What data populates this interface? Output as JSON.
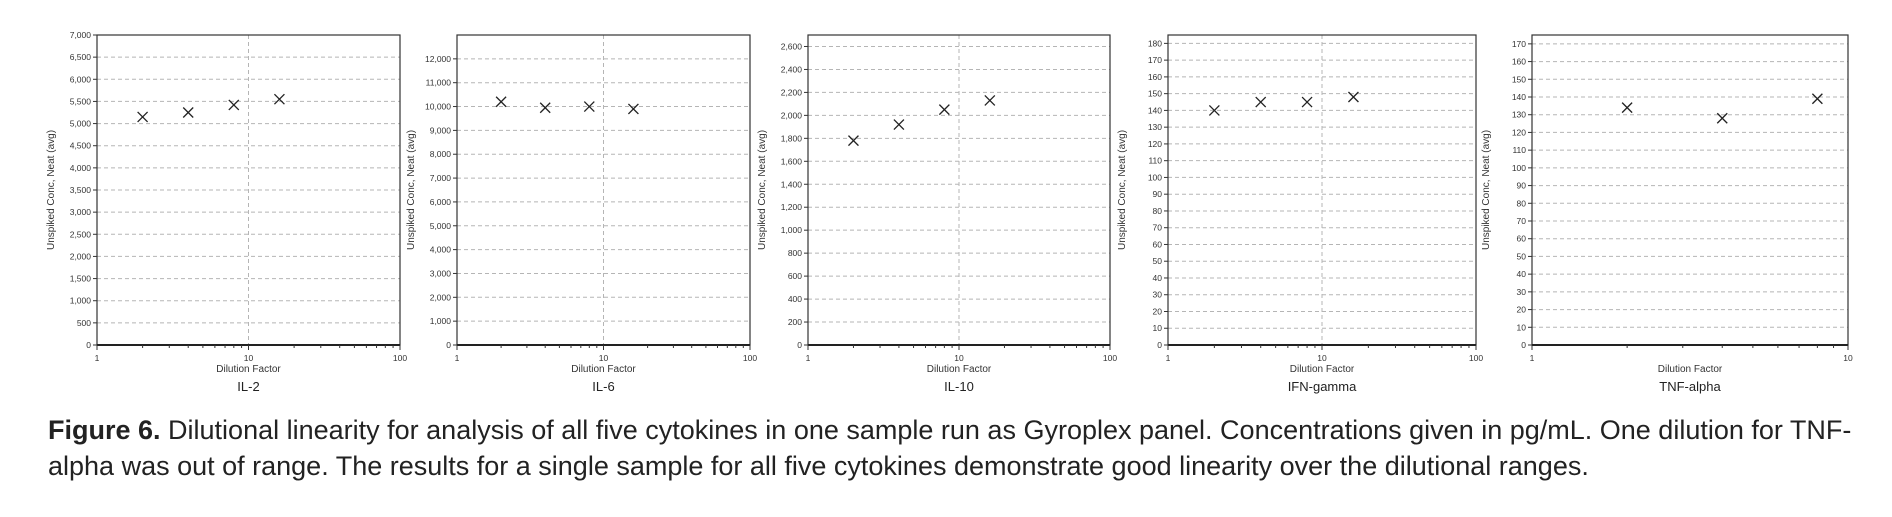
{
  "figure": {
    "caption_label": "Figure 6.",
    "caption_text": "Dilutional linearity for analysis of all five cytokines in one sample run as Gyroplex panel. Concentrations given in pg/mL. One dilution for TNF-alpha was out of range. The results for a single sample for all five cytokines demonstrate good linearity over the dilutional ranges."
  },
  "chart_data": [
    {
      "type": "scatter",
      "title": "IL-2",
      "xlabel": "Dilution Factor",
      "ylabel": "Unspiked Conc, Neat (avg)",
      "xscale": "log",
      "xlim": [
        1,
        100
      ],
      "xticks": [
        1,
        10,
        100
      ],
      "ylim": [
        0,
        7000
      ],
      "yticks": [
        0,
        500,
        1000,
        1500,
        2000,
        2500,
        3000,
        3500,
        4000,
        4500,
        5000,
        5500,
        6000,
        6500,
        7000
      ],
      "ytick_labels": [
        "0",
        "500",
        "1,000",
        "1,500",
        "2,000",
        "2,500",
        "3,000",
        "3,500",
        "4,000",
        "4,500",
        "5,000",
        "5,500",
        "6,000",
        "6,500",
        "7,000"
      ],
      "grid": true,
      "marker": "x",
      "points": [
        {
          "x": 2,
          "y": 5150
        },
        {
          "x": 4,
          "y": 5250
        },
        {
          "x": 8,
          "y": 5420
        },
        {
          "x": 16,
          "y": 5550
        }
      ]
    },
    {
      "type": "scatter",
      "title": "IL-6",
      "xlabel": "Dilution Factor",
      "ylabel": "Unspiked Conc, Neat (avg)",
      "xscale": "log",
      "xlim": [
        1,
        100
      ],
      "xticks": [
        1,
        10,
        100
      ],
      "ylim": [
        0,
        13000
      ],
      "yticks": [
        0,
        1000,
        2000,
        3000,
        4000,
        5000,
        6000,
        7000,
        8000,
        9000,
        10000,
        11000,
        12000
      ],
      "ytick_labels": [
        "0",
        "1,000",
        "2,000",
        "3,000",
        "4,000",
        "5,000",
        "6,000",
        "7,000",
        "8,000",
        "9,000",
        "10,000",
        "11,000",
        "12,000"
      ],
      "grid": true,
      "marker": "x",
      "points": [
        {
          "x": 2,
          "y": 10200
        },
        {
          "x": 4,
          "y": 9950
        },
        {
          "x": 8,
          "y": 10000
        },
        {
          "x": 16,
          "y": 9900
        }
      ]
    },
    {
      "type": "scatter",
      "title": "IL-10",
      "xlabel": "Dilution Factor",
      "ylabel": "Unspiked Conc, Neat (avg)",
      "xscale": "log",
      "xlim": [
        1,
        100
      ],
      "xticks": [
        1,
        10,
        100
      ],
      "ylim": [
        0,
        2700
      ],
      "yticks": [
        0,
        200,
        400,
        600,
        800,
        1000,
        1200,
        1400,
        1600,
        1800,
        2000,
        2200,
        2400,
        2600
      ],
      "ytick_labels": [
        "0",
        "200",
        "400",
        "600",
        "800",
        "1,000",
        "1,200",
        "1,400",
        "1,600",
        "1,800",
        "2,000",
        "2,200",
        "2,400",
        "2,600"
      ],
      "grid": true,
      "marker": "x",
      "points": [
        {
          "x": 2,
          "y": 1780
        },
        {
          "x": 4,
          "y": 1920
        },
        {
          "x": 8,
          "y": 2050
        },
        {
          "x": 16,
          "y": 2130
        }
      ]
    },
    {
      "type": "scatter",
      "title": "IFN-gamma",
      "xlabel": "Dilution Factor",
      "ylabel": "Unspiked Conc, Neat (avg)",
      "xscale": "log",
      "xlim": [
        1,
        100
      ],
      "xticks": [
        1,
        10,
        100
      ],
      "ylim": [
        0,
        185
      ],
      "yticks": [
        0,
        10,
        20,
        30,
        40,
        50,
        60,
        70,
        80,
        90,
        100,
        110,
        120,
        130,
        140,
        150,
        160,
        170,
        180
      ],
      "ytick_labels": [
        "0",
        "10",
        "20",
        "30",
        "40",
        "50",
        "60",
        "70",
        "80",
        "90",
        "100",
        "110",
        "120",
        "130",
        "140",
        "150",
        "160",
        "170",
        "180"
      ],
      "grid": true,
      "marker": "x",
      "points": [
        {
          "x": 2,
          "y": 140
        },
        {
          "x": 4,
          "y": 145
        },
        {
          "x": 8,
          "y": 145
        },
        {
          "x": 16,
          "y": 148
        }
      ]
    },
    {
      "type": "scatter",
      "title": "TNF-alpha",
      "xlabel": "Dilution Factor",
      "ylabel": "Unspiked Conc, Neat (avg)",
      "xscale": "log",
      "xlim": [
        1,
        10
      ],
      "xticks": [
        1,
        10
      ],
      "ylim": [
        0,
        175
      ],
      "yticks": [
        0,
        10,
        20,
        30,
        40,
        50,
        60,
        70,
        80,
        90,
        100,
        110,
        120,
        130,
        140,
        150,
        160,
        170
      ],
      "ytick_labels": [
        "0",
        "10",
        "20",
        "30",
        "40",
        "50",
        "60",
        "70",
        "80",
        "90",
        "100",
        "110",
        "120",
        "130",
        "140",
        "150",
        "160",
        "170"
      ],
      "grid": true,
      "marker": "x",
      "points": [
        {
          "x": 2,
          "y": 134
        },
        {
          "x": 4,
          "y": 128
        },
        {
          "x": 8,
          "y": 139
        }
      ]
    }
  ]
}
